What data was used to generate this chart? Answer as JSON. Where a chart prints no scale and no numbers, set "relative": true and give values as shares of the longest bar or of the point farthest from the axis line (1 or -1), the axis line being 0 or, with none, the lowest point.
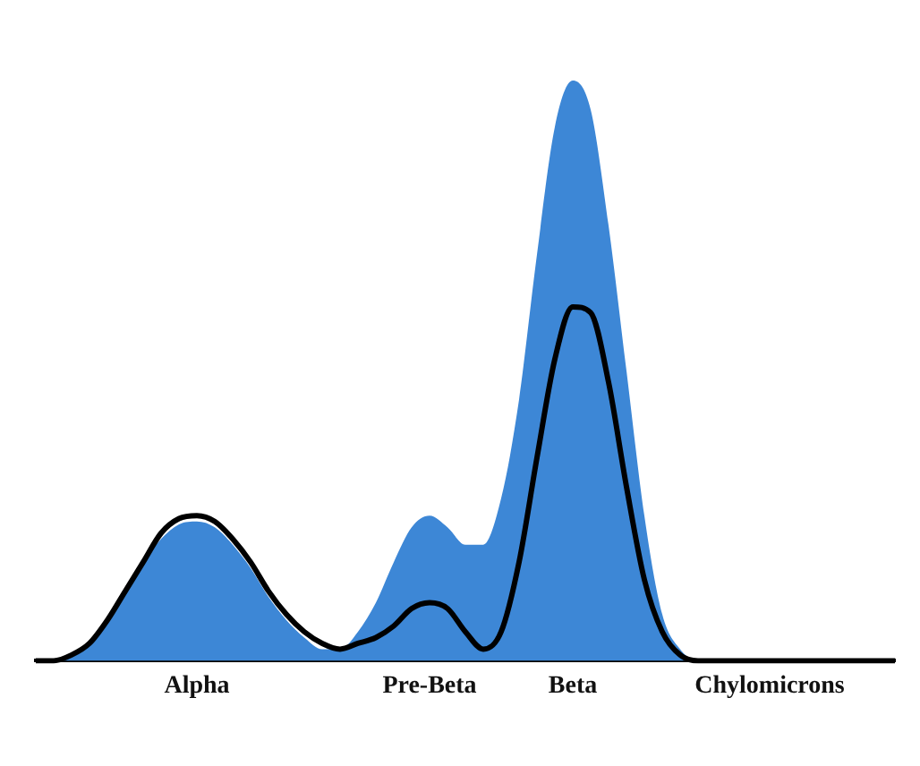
{
  "chart_data": {
    "type": "area",
    "relative": true,
    "legend": false,
    "grid": false,
    "marker": "none",
    "tick_labels": "x",
    "categories": [
      null,
      null,
      null,
      null,
      null,
      null,
      null,
      null,
      null,
      "Alpha",
      null,
      null,
      null,
      null,
      null,
      null,
      null,
      null,
      null,
      null,
      null,
      null,
      "Pre-Beta",
      null,
      null,
      null,
      null,
      null,
      null,
      null,
      "Beta",
      null,
      null,
      null,
      null,
      null,
      null,
      null,
      null,
      null,
      null,
      "Chylomicrons",
      null,
      null,
      null,
      null,
      null,
      null,
      null
    ],
    "series": [
      {
        "color": "#3d87d6",
        "values": [
          0,
          0,
          0.01,
          0.03,
          0.07,
          0.12,
          0.17,
          0.21,
          0.235,
          0.24,
          0.23,
          0.2,
          0.16,
          0.11,
          0.07,
          0.04,
          0.02,
          0.02,
          0.05,
          0.1,
          0.17,
          0.23,
          0.25,
          0.23,
          0.2,
          0.2,
          0.28,
          0.45,
          0.7,
          0.92,
          1.0,
          0.95,
          0.75,
          0.5,
          0.25,
          0.08,
          0.02,
          0,
          0,
          0,
          0,
          0,
          0,
          0,
          0,
          0,
          0,
          0,
          0
        ]
      },
      {
        "type": "line",
        "color": "#000000",
        "values": [
          0,
          0,
          0.01,
          0.03,
          0.07,
          0.12,
          0.17,
          0.22,
          0.245,
          0.25,
          0.24,
          0.21,
          0.17,
          0.12,
          0.08,
          0.05,
          0.03,
          0.02,
          0.03,
          0.04,
          0.06,
          0.09,
          0.1,
          0.09,
          0.05,
          0.02,
          0.05,
          0.17,
          0.35,
          0.52,
          0.61,
          0.6,
          0.48,
          0.3,
          0.14,
          0.05,
          0.01,
          0,
          0,
          0,
          0,
          0,
          0,
          0,
          0,
          0,
          0,
          0,
          0
        ]
      }
    ]
  }
}
